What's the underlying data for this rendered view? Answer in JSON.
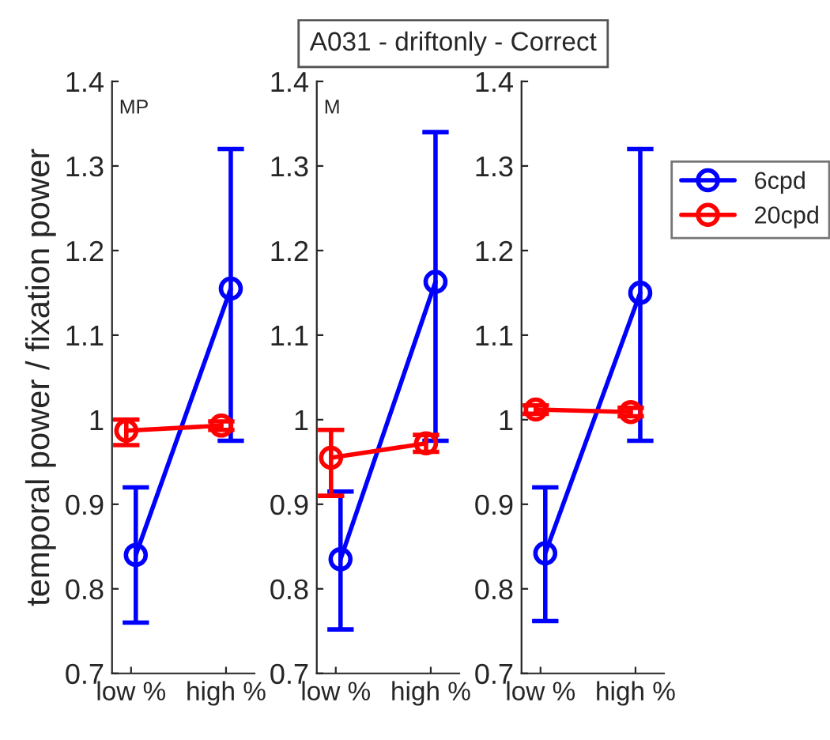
{
  "chart_data": [
    {
      "type": "line",
      "categories": [
        "low %",
        "high %"
      ],
      "ylabel": "temporal power / fixation power",
      "annotations": [
        "MP"
      ],
      "ylim": [
        0.7,
        1.4
      ],
      "yticks": [
        0.7,
        0.8,
        0.9,
        1,
        1.1,
        1.2,
        1.3,
        1.4
      ],
      "marker": "circle",
      "grid": false,
      "series": [
        {
          "color": "#0000ff",
          "values": [
            0.84,
            1.155
          ],
          "errors": [
            [
              0.76,
              0.92
            ],
            [
              0.975,
              1.32
            ]
          ]
        },
        {
          "color": "#ff0000",
          "values": [
            0.987,
            0.993
          ],
          "errors": [
            [
              0.97,
              1.0
            ],
            [
              0.988,
              0.998
            ]
          ]
        }
      ]
    },
    {
      "type": "line",
      "categories": [
        "low %",
        "high %"
      ],
      "annotations": [
        "M"
      ],
      "ylim": [
        0.7,
        1.4
      ],
      "yticks": [
        0.7,
        0.8,
        0.9,
        1,
        1.1,
        1.2,
        1.3,
        1.4
      ],
      "marker": "circle",
      "grid": false,
      "title": "A031 - driftonly - Correct",
      "series": [
        {
          "color": "#0000ff",
          "values": [
            0.835,
            1.163
          ],
          "errors": [
            [
              0.752,
              0.915
            ],
            [
              0.975,
              1.34
            ]
          ]
        },
        {
          "color": "#ff0000",
          "values": [
            0.955,
            0.972
          ],
          "errors": [
            [
              0.91,
              0.988
            ],
            [
              0.962,
              0.982
            ]
          ]
        }
      ]
    },
    {
      "type": "line",
      "categories": [
        "low %",
        "high %"
      ],
      "ylim": [
        0.7,
        1.4
      ],
      "yticks": [
        0.7,
        0.8,
        0.9,
        1,
        1.1,
        1.2,
        1.3,
        1.4
      ],
      "marker": "circle",
      "grid": false,
      "legend": "right",
      "series": [
        {
          "name": "6cpd",
          "color": "#0000ff",
          "values": [
            0.842,
            1.15
          ],
          "errors": [
            [
              0.762,
              0.92
            ],
            [
              0.975,
              1.32
            ]
          ]
        },
        {
          "name": "20cpd",
          "color": "#ff0000",
          "values": [
            1.012,
            1.009
          ],
          "errors": [
            [
              1.007,
              1.017
            ],
            [
              1.004,
              1.014
            ]
          ]
        }
      ]
    }
  ]
}
